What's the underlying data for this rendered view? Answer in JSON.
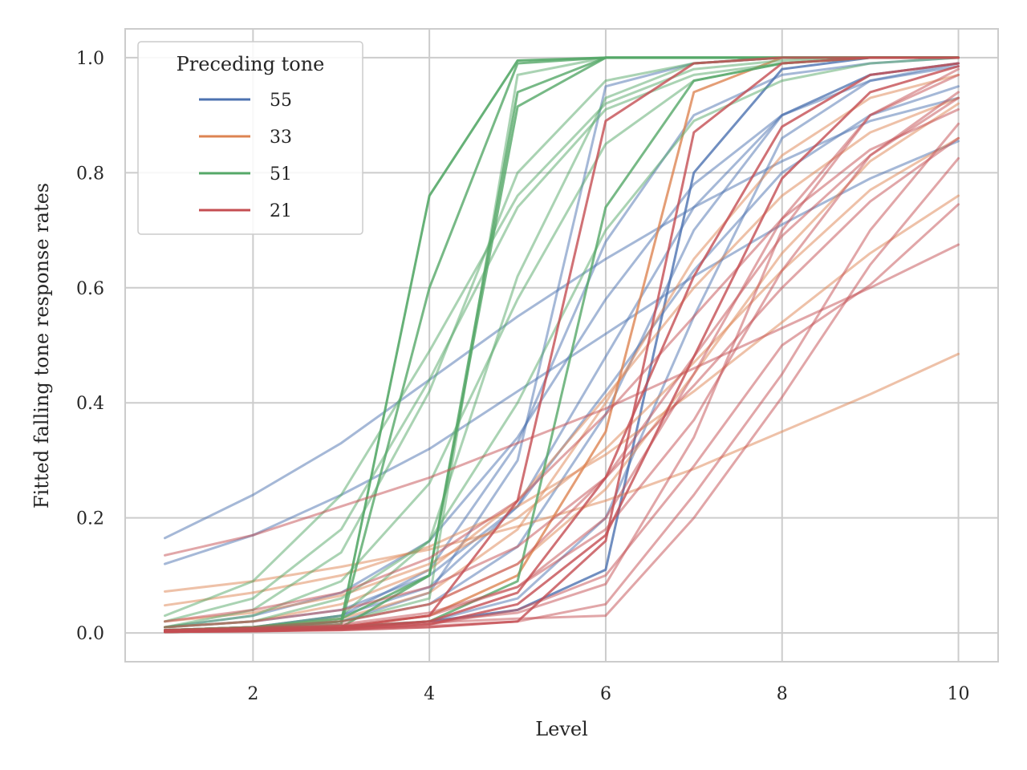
{
  "chart_data": {
    "type": "line",
    "title": "",
    "xlabel": "Level",
    "ylabel": "Fitted falling tone response rates",
    "xlim": [
      0.55,
      10.45
    ],
    "ylim": [
      -0.05,
      1.05
    ],
    "x": [
      1,
      2,
      3,
      4,
      5,
      6,
      7,
      8,
      9,
      10
    ],
    "x_ticks": [
      2,
      4,
      6,
      8,
      10
    ],
    "x_tick_labels": [
      "2",
      "4",
      "6",
      "8",
      "10"
    ],
    "y_ticks": [
      0.0,
      0.2,
      0.4,
      0.6,
      0.8,
      1.0
    ],
    "y_tick_labels": [
      "0.0",
      "0.2",
      "0.4",
      "0.6",
      "0.8",
      "1.0"
    ],
    "grid": true,
    "legend": {
      "title": "Preceding tone",
      "placement": "top-left",
      "entries": [
        {
          "label": "55",
          "color": "#4c72b0"
        },
        {
          "label": "33",
          "color": "#dd8452"
        },
        {
          "label": "51",
          "color": "#55a868"
        },
        {
          "label": "21",
          "color": "#c44e52"
        }
      ]
    },
    "series": [
      {
        "group": "55",
        "color": "#4c72b0",
        "opacity": 0.5,
        "values": [
          0.165,
          0.24,
          0.33,
          0.44,
          0.55,
          0.65,
          0.74,
          0.82,
          0.89,
          0.93
        ]
      },
      {
        "group": "55",
        "color": "#4c72b0",
        "opacity": 0.5,
        "values": [
          0.12,
          0.17,
          0.24,
          0.32,
          0.42,
          0.52,
          0.62,
          0.71,
          0.79,
          0.855
        ]
      },
      {
        "group": "55",
        "color": "#4c72b0",
        "opacity": 0.5,
        "values": [
          0.01,
          0.03,
          0.07,
          0.16,
          0.34,
          0.58,
          0.78,
          0.9,
          0.96,
          0.985
        ]
      },
      {
        "group": "55",
        "color": "#4c72b0",
        "opacity": 0.5,
        "values": [
          0.005,
          0.01,
          0.03,
          0.08,
          0.22,
          0.48,
          0.74,
          0.9,
          0.97,
          0.99
        ]
      },
      {
        "group": "55",
        "color": "#4c72b0",
        "opacity": 0.5,
        "values": [
          0.002,
          0.005,
          0.02,
          0.07,
          0.3,
          0.95,
          0.99,
          1.0,
          1.0,
          1.0
        ]
      },
      {
        "group": "55",
        "color": "#4c72b0",
        "opacity": 0.5,
        "values": [
          0.005,
          0.01,
          0.02,
          0.05,
          0.15,
          0.38,
          0.7,
          0.9,
          0.97,
          0.99
        ]
      },
      {
        "group": "55",
        "color": "#4c72b0",
        "opacity": 0.5,
        "values": [
          0.002,
          0.004,
          0.008,
          0.02,
          0.06,
          0.2,
          0.55,
          0.86,
          0.96,
          0.99
        ]
      },
      {
        "group": "55",
        "color": "#4c72b0",
        "opacity": 0.5,
        "values": [
          0.01,
          0.02,
          0.04,
          0.1,
          0.22,
          0.42,
          0.63,
          0.8,
          0.9,
          0.95
        ]
      },
      {
        "group": "55",
        "color": "#4c72b0",
        "opacity": 0.8,
        "values": [
          0.002,
          0.005,
          0.01,
          0.02,
          0.04,
          0.11,
          0.8,
          0.98,
          1.0,
          1.0
        ]
      },
      {
        "group": "55",
        "color": "#4c72b0",
        "opacity": 0.5,
        "values": [
          0.005,
          0.01,
          0.03,
          0.11,
          0.33,
          0.68,
          0.9,
          0.97,
          0.99,
          1.0
        ]
      },
      {
        "group": "33",
        "color": "#dd8452",
        "opacity": 0.5,
        "values": [
          0.072,
          0.09,
          0.115,
          0.145,
          0.185,
          0.23,
          0.285,
          0.35,
          0.415,
          0.485
        ]
      },
      {
        "group": "33",
        "color": "#dd8452",
        "opacity": 0.5,
        "values": [
          0.048,
          0.07,
          0.1,
          0.15,
          0.22,
          0.31,
          0.42,
          0.54,
          0.66,
          0.76
        ]
      },
      {
        "group": "33",
        "color": "#dd8452",
        "opacity": 0.5,
        "values": [
          0.01,
          0.02,
          0.05,
          0.11,
          0.23,
          0.41,
          0.6,
          0.76,
          0.87,
          0.93
        ]
      },
      {
        "group": "33",
        "color": "#dd8452",
        "opacity": 0.5,
        "values": [
          0.005,
          0.01,
          0.025,
          0.07,
          0.18,
          0.4,
          0.65,
          0.83,
          0.93,
          0.97
        ]
      },
      {
        "group": "33",
        "color": "#dd8452",
        "opacity": 0.8,
        "values": [
          0.002,
          0.004,
          0.01,
          0.03,
          0.1,
          0.35,
          0.94,
          1.0,
          1.0,
          1.0
        ]
      },
      {
        "group": "33",
        "color": "#dd8452",
        "opacity": 0.5,
        "values": [
          0.02,
          0.035,
          0.065,
          0.12,
          0.2,
          0.32,
          0.47,
          0.63,
          0.77,
          0.86
        ]
      },
      {
        "group": "33",
        "color": "#dd8452",
        "opacity": 0.5,
        "values": [
          0.005,
          0.01,
          0.02,
          0.05,
          0.12,
          0.25,
          0.45,
          0.66,
          0.82,
          0.92
        ]
      },
      {
        "group": "51",
        "color": "#55a868",
        "opacity": 0.9,
        "values": [
          0.005,
          0.008,
          0.02,
          0.76,
          0.995,
          1.0,
          1.0,
          1.0,
          1.0,
          1.0
        ]
      },
      {
        "group": "51",
        "color": "#55a868",
        "opacity": 0.8,
        "values": [
          0.003,
          0.006,
          0.015,
          0.6,
          0.99,
          1.0,
          1.0,
          1.0,
          1.0,
          1.0
        ]
      },
      {
        "group": "51",
        "color": "#55a868",
        "opacity": 0.8,
        "values": [
          0.002,
          0.004,
          0.01,
          0.1,
          0.94,
          1.0,
          1.0,
          1.0,
          1.0,
          1.0
        ]
      },
      {
        "group": "51",
        "color": "#55a868",
        "opacity": 0.5,
        "values": [
          0.03,
          0.09,
          0.24,
          0.49,
          0.76,
          0.92,
          0.98,
          0.995,
          1.0,
          1.0
        ]
      },
      {
        "group": "51",
        "color": "#55a868",
        "opacity": 0.5,
        "values": [
          0.02,
          0.06,
          0.18,
          0.44,
          0.74,
          0.91,
          0.97,
          0.99,
          1.0,
          1.0
        ]
      },
      {
        "group": "51",
        "color": "#55a868",
        "opacity": 0.5,
        "values": [
          0.01,
          0.04,
          0.14,
          0.42,
          0.8,
          0.96,
          0.99,
          1.0,
          1.0,
          1.0
        ]
      },
      {
        "group": "51",
        "color": "#55a868",
        "opacity": 0.5,
        "values": [
          0.01,
          0.02,
          0.06,
          0.16,
          0.4,
          0.7,
          0.89,
          0.96,
          0.99,
          1.0
        ]
      },
      {
        "group": "51",
        "color": "#55a868",
        "opacity": 0.5,
        "values": [
          0.005,
          0.01,
          0.02,
          0.06,
          0.97,
          1.0,
          1.0,
          1.0,
          1.0,
          1.0
        ]
      },
      {
        "group": "51",
        "color": "#55a868",
        "opacity": 0.5,
        "values": [
          0.01,
          0.03,
          0.09,
          0.26,
          0.58,
          0.85,
          0.96,
          0.99,
          1.0,
          1.0
        ]
      },
      {
        "group": "51",
        "color": "#55a868",
        "opacity": 0.8,
        "values": [
          0.005,
          0.01,
          0.025,
          0.1,
          0.915,
          1.0,
          1.0,
          1.0,
          1.0,
          1.0
        ]
      },
      {
        "group": "51",
        "color": "#55a868",
        "opacity": 0.8,
        "values": [
          0.002,
          0.004,
          0.01,
          0.02,
          0.09,
          0.74,
          0.96,
          0.99,
          1.0,
          1.0
        ]
      },
      {
        "group": "51",
        "color": "#55a868",
        "opacity": 0.5,
        "values": [
          0.005,
          0.01,
          0.03,
          0.16,
          0.62,
          0.93,
          0.99,
          1.0,
          1.0,
          1.0
        ]
      },
      {
        "group": "21",
        "color": "#c44e52",
        "opacity": 0.5,
        "values": [
          0.135,
          0.17,
          0.22,
          0.27,
          0.33,
          0.39,
          0.46,
          0.53,
          0.6,
          0.675
        ]
      },
      {
        "group": "21",
        "color": "#c44e52",
        "opacity": 0.5,
        "values": [
          0.005,
          0.008,
          0.012,
          0.018,
          0.025,
          0.03,
          0.2,
          0.41,
          0.64,
          0.825
        ]
      },
      {
        "group": "21",
        "color": "#c44e52",
        "opacity": 0.5,
        "values": [
          0.003,
          0.005,
          0.008,
          0.012,
          0.02,
          0.05,
          0.24,
          0.45,
          0.7,
          0.885
        ]
      },
      {
        "group": "21",
        "color": "#c44e52",
        "opacity": 0.5,
        "values": [
          0.005,
          0.008,
          0.012,
          0.02,
          0.035,
          0.085,
          0.34,
          0.7,
          0.9,
          0.98
        ]
      },
      {
        "group": "21",
        "color": "#c44e52",
        "opacity": 0.5,
        "values": [
          0.002,
          0.004,
          0.008,
          0.015,
          0.04,
          0.1,
          0.29,
          0.5,
          0.605,
          0.745
        ]
      },
      {
        "group": "21",
        "color": "#c44e52",
        "opacity": 0.5,
        "values": [
          0.01,
          0.02,
          0.04,
          0.08,
          0.15,
          0.27,
          0.43,
          0.6,
          0.75,
          0.86
        ]
      },
      {
        "group": "21",
        "color": "#c44e52",
        "opacity": 0.5,
        "values": [
          0.02,
          0.04,
          0.07,
          0.13,
          0.23,
          0.38,
          0.55,
          0.72,
          0.84,
          0.91
        ]
      },
      {
        "group": "21",
        "color": "#c44e52",
        "opacity": 0.5,
        "values": [
          0.005,
          0.01,
          0.02,
          0.05,
          0.12,
          0.27,
          0.48,
          0.69,
          0.83,
          0.93
        ]
      },
      {
        "group": "21",
        "color": "#c44e52",
        "opacity": 0.8,
        "values": [
          0.002,
          0.003,
          0.005,
          0.01,
          0.02,
          0.16,
          0.87,
          0.99,
          1.0,
          1.0
        ]
      },
      {
        "group": "21",
        "color": "#c44e52",
        "opacity": 0.8,
        "values": [
          0.002,
          0.004,
          0.008,
          0.02,
          0.07,
          0.27,
          0.62,
          0.88,
          0.97,
          0.99
        ]
      },
      {
        "group": "21",
        "color": "#c44e52",
        "opacity": 0.5,
        "values": [
          0.003,
          0.006,
          0.012,
          0.03,
          0.08,
          0.2,
          0.45,
          0.72,
          0.9,
          0.97
        ]
      },
      {
        "group": "21",
        "color": "#c44e52",
        "opacity": 0.8,
        "values": [
          0.002,
          0.004,
          0.01,
          0.03,
          0.23,
          0.89,
          0.99,
          1.0,
          1.0,
          1.0
        ]
      },
      {
        "group": "21",
        "color": "#c44e52",
        "opacity": 0.5,
        "values": [
          0.004,
          0.008,
          0.015,
          0.035,
          0.08,
          0.18,
          0.37,
          0.63,
          0.83,
          0.94
        ]
      },
      {
        "group": "21",
        "color": "#c44e52",
        "opacity": 0.8,
        "values": [
          0.002,
          0.003,
          0.006,
          0.015,
          0.05,
          0.17,
          0.48,
          0.79,
          0.94,
          0.985
        ]
      }
    ]
  }
}
